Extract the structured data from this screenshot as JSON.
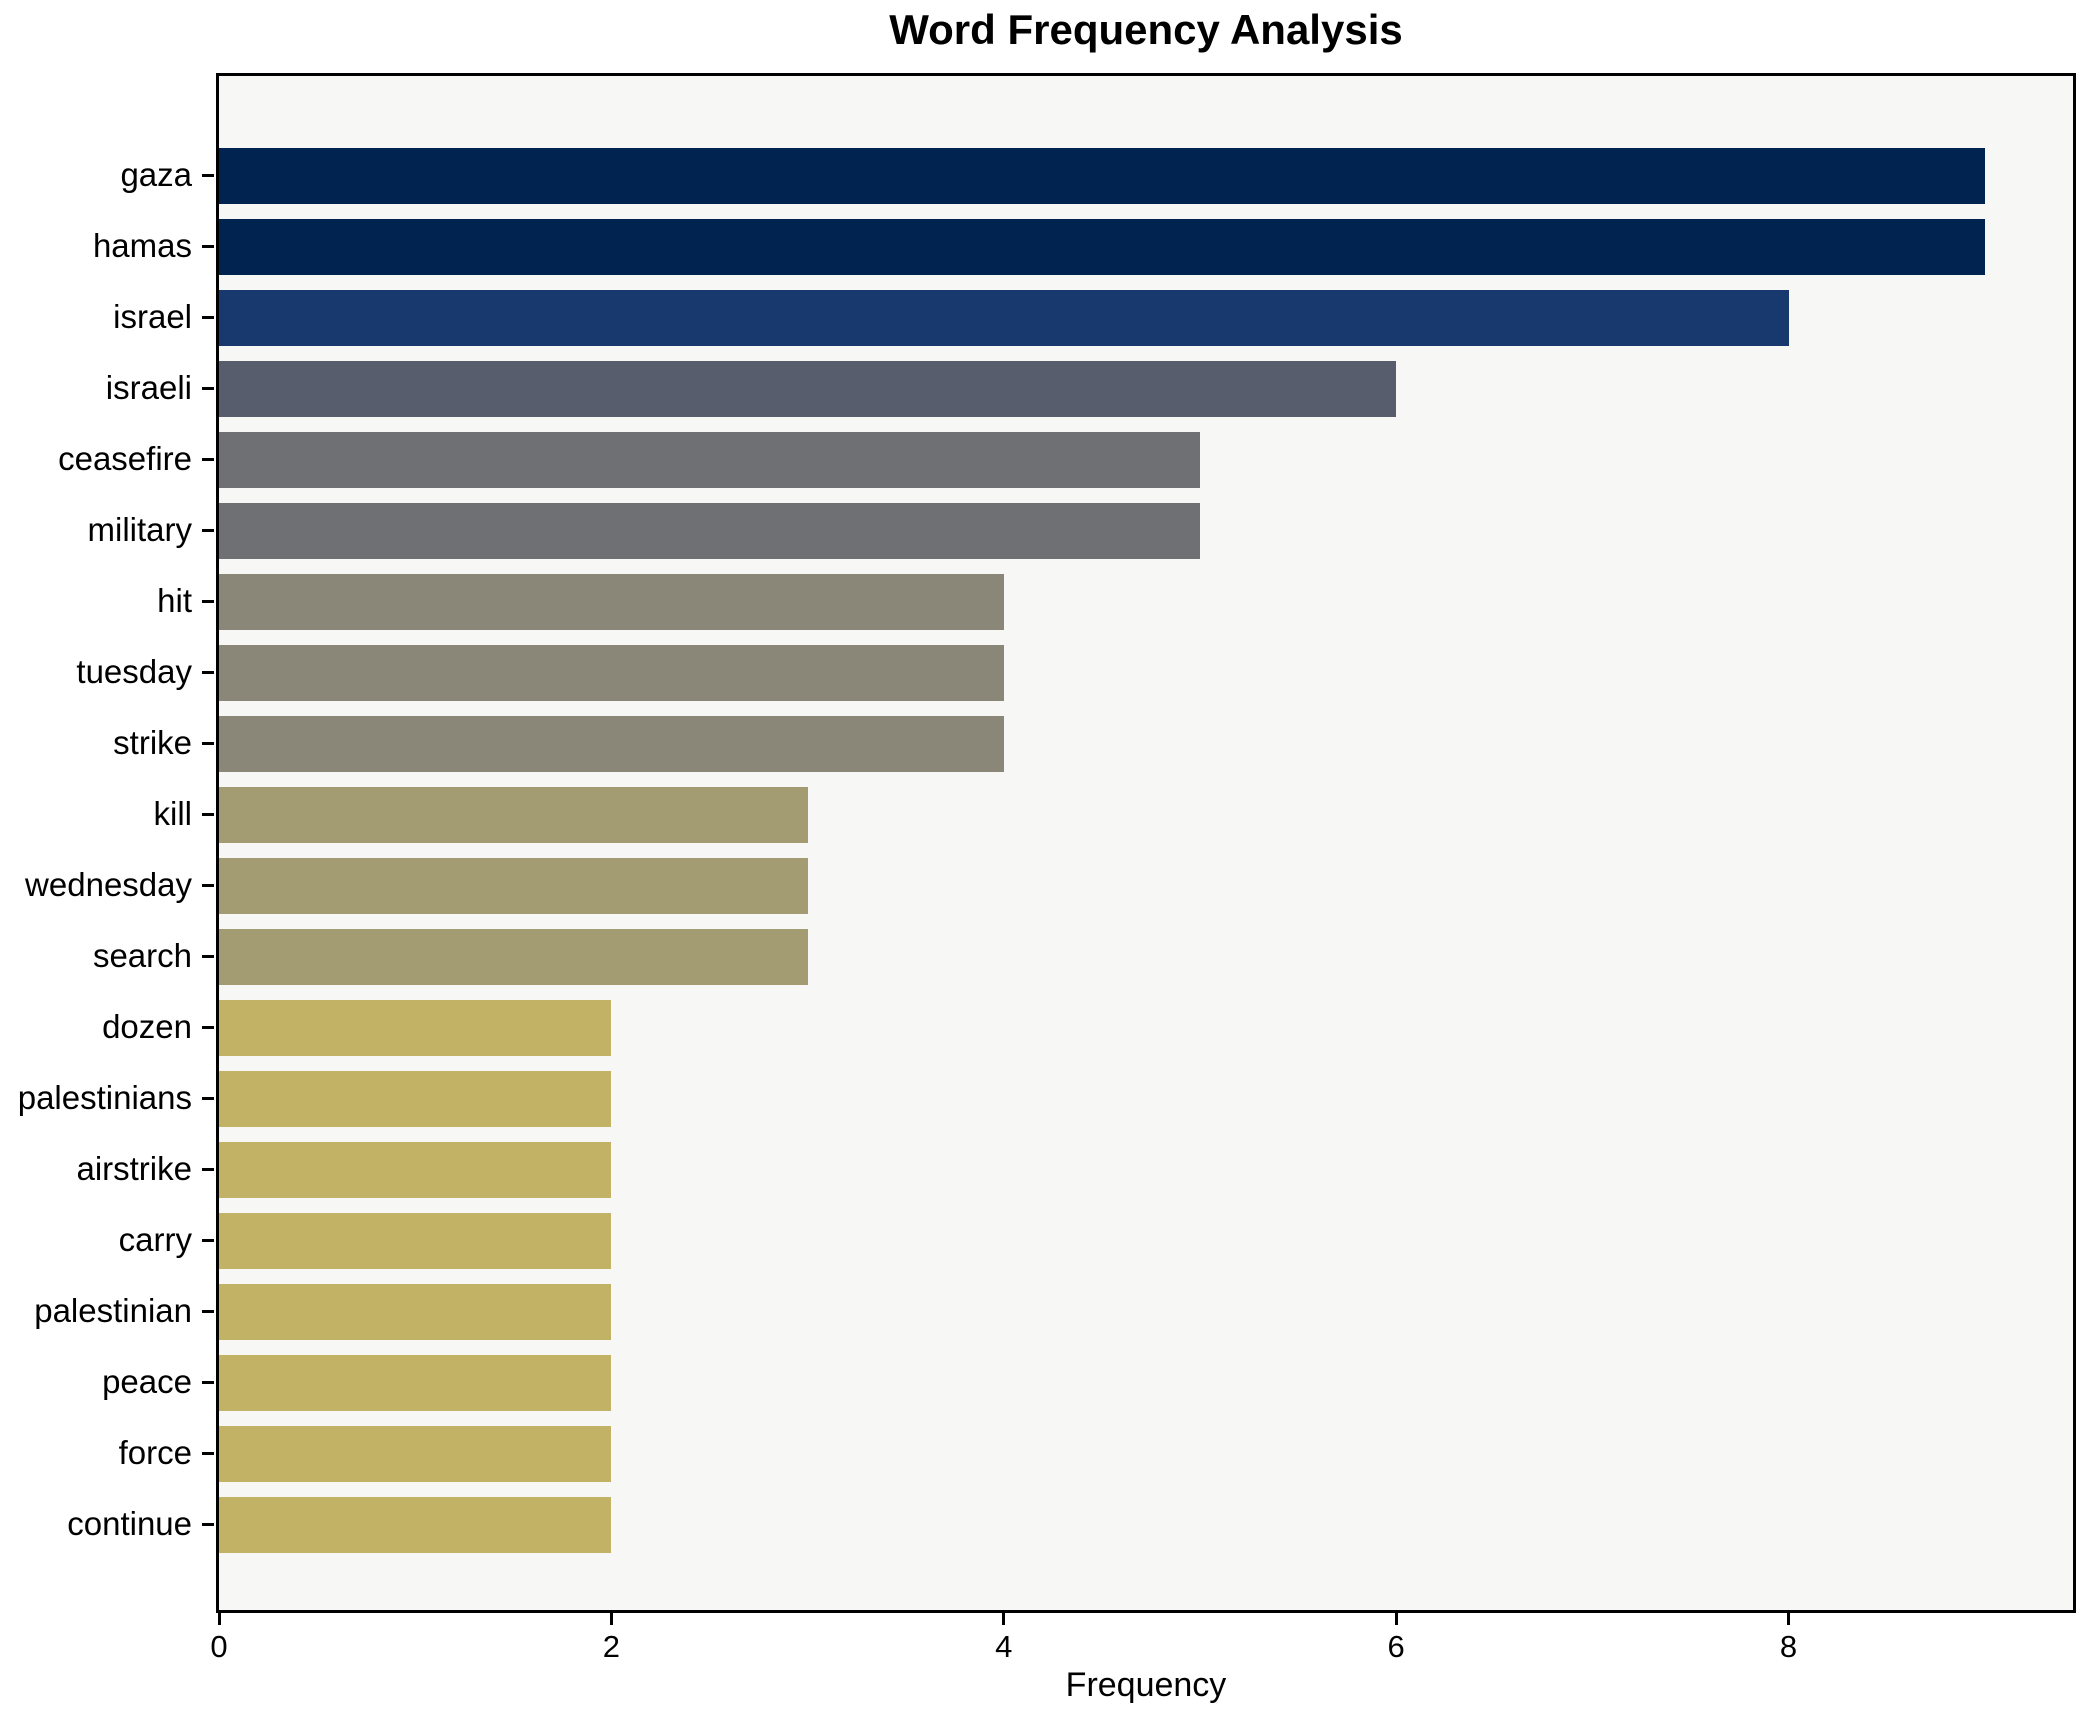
{
  "chart_data": {
    "type": "bar",
    "orientation": "horizontal",
    "title": "Word Frequency Analysis",
    "xlabel": "Frequency",
    "ylabel": "",
    "categories": [
      "gaza",
      "hamas",
      "israel",
      "israeli",
      "ceasefire",
      "military",
      "hit",
      "tuesday",
      "strike",
      "kill",
      "wednesday",
      "search",
      "dozen",
      "palestinians",
      "airstrike",
      "carry",
      "palestinian",
      "peace",
      "force",
      "continue"
    ],
    "values": [
      9,
      9,
      8,
      6,
      5,
      5,
      4,
      4,
      4,
      3,
      3,
      3,
      2,
      2,
      2,
      2,
      2,
      2,
      2,
      2
    ],
    "bar_colors": [
      "#00234f",
      "#00234f",
      "#17396d",
      "#575d6d",
      "#6f7073",
      "#6f7073",
      "#8a8778",
      "#8a8778",
      "#8a8778",
      "#a39c73",
      "#a39c73",
      "#a39c73",
      "#c2b266",
      "#c2b266",
      "#c2b266",
      "#c2b266",
      "#c2b266",
      "#c2b266",
      "#c2b266",
      "#c2b266"
    ],
    "xlim": [
      0,
      9.45
    ],
    "xticks": [
      0,
      2,
      4,
      6,
      8
    ],
    "grid": false,
    "legend": "none",
    "plot_background": "#f7f7f5",
    "figure_background": "#ffffff",
    "spine_color": "#000000"
  }
}
